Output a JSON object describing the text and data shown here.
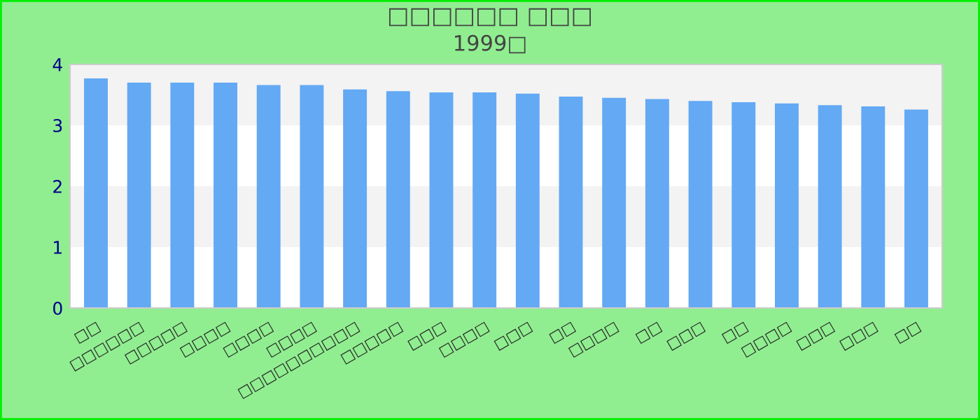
{
  "chart_data": {
    "type": "bar",
    "title": "□□□□□□ □□□",
    "subtitle": "1999□",
    "categories": [
      "□□",
      "□□□□□□",
      "□□□□□",
      "□□□□",
      "□□□□",
      "□□□□",
      "□□□□□□□□□□",
      "□□□□□",
      "□□□",
      "□□□□",
      "□□□",
      "□□",
      "□□□□",
      "□□",
      "□□□",
      "□□",
      "□□□□",
      "□□□",
      "□□□",
      "□□"
    ],
    "values": [
      3.77,
      3.7,
      3.7,
      3.7,
      3.66,
      3.66,
      3.59,
      3.56,
      3.54,
      3.54,
      3.52,
      3.47,
      3.45,
      3.43,
      3.4,
      3.38,
      3.36,
      3.33,
      3.31,
      3.26
    ],
    "color": "#63a9f4",
    "ylim": [
      0,
      4
    ],
    "yticks": [
      0,
      1,
      2,
      3,
      4
    ]
  }
}
